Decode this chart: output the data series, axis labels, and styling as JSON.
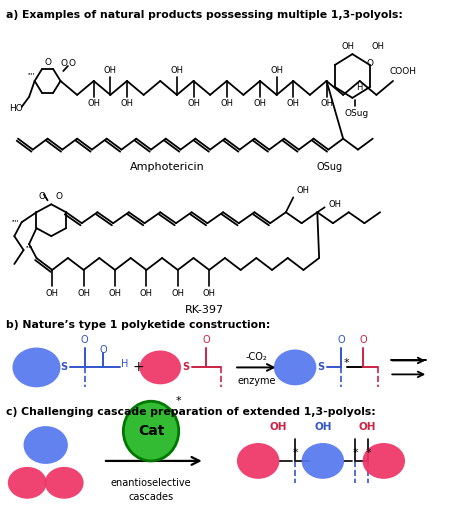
{
  "title_a": "a) Examples of natural products possessing multiple 1,3-polyols:",
  "label_amphotericin": "Amphotericin",
  "label_osug": "OSug",
  "label_rk397": "RK-397",
  "title_b": "b) Nature’s type 1 polyketide construction:",
  "title_c": "c) Challenging cascade preparation of extended 1,3-polyols:",
  "minus_co2": "-CO₂",
  "enzyme": "enzyme",
  "cat_label": "Cat",
  "cat_star": "*",
  "enantioselective": "enantioselective",
  "cascades": "cascades",
  "plus": "+",
  "oh_label": "OH",
  "ho_label": "HO",
  "cooh_label": "COOH",
  "blue_color": "#3355cc",
  "red_color": "#cc2244",
  "green_fill": "#33bb33",
  "green_edge": "#007700",
  "black": "#000000",
  "bg_color": "#ffffff",
  "blue_ball_color": "#5577ee",
  "red_ball_color": "#ee3366"
}
